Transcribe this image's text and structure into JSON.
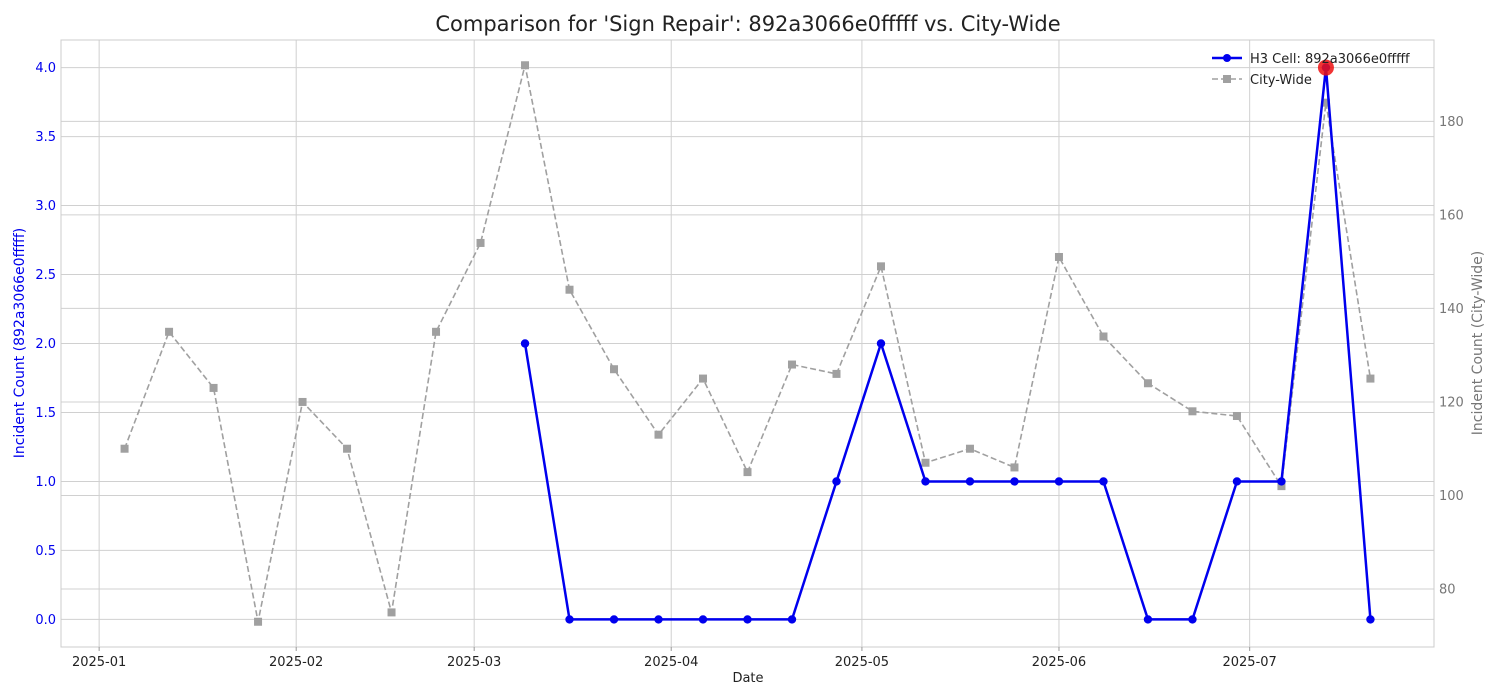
{
  "chart_data": {
    "type": "line",
    "title": "Comparison for 'Sign Repair': 892a3066e0fffff vs. City-Wide",
    "xlabel": "Date",
    "ylabel_left": "Incident Count (892a3066e0fffff)",
    "ylabel_right": "Incident Count (City-Wide)",
    "x_ticks": [
      "2025-01",
      "2025-02",
      "2025-03",
      "2025-04",
      "2025-05",
      "2025-06",
      "2025-07"
    ],
    "x_tick_dates": [
      "2025-01-01",
      "2025-02-01",
      "2025-03-01",
      "2025-04-01",
      "2025-05-01",
      "2025-06-01",
      "2025-07-01"
    ],
    "xlim": [
      "2024-12-26",
      "2025-07-30"
    ],
    "ylim_left": [
      -0.2,
      4.2
    ],
    "ylim_right": [
      67.6,
      197.4
    ],
    "yticks_left": [
      0.0,
      0.5,
      1.0,
      1.5,
      2.0,
      2.5,
      3.0,
      3.5,
      4.0
    ],
    "yticks_right": [
      80,
      100,
      120,
      140,
      160,
      180
    ],
    "grid": true,
    "legend_position": "top-right",
    "colors": {
      "h3": "#0000ee",
      "city": "#a0a0a0",
      "highlight": "#ee1111",
      "left_axis": "#0000ee",
      "right_axis": "#777777"
    },
    "series": [
      {
        "name": "H3 Cell: 892a3066e0fffff",
        "axis": "left",
        "style": "solid-circle",
        "x": [
          "2025-03-09",
          "2025-03-16",
          "2025-03-23",
          "2025-03-30",
          "2025-04-06",
          "2025-04-13",
          "2025-04-20",
          "2025-04-27",
          "2025-05-04",
          "2025-05-11",
          "2025-05-18",
          "2025-05-25",
          "2025-06-01",
          "2025-06-08",
          "2025-06-15",
          "2025-06-22",
          "2025-06-29",
          "2025-07-06",
          "2025-07-13",
          "2025-07-20"
        ],
        "values": [
          2,
          0,
          0,
          0,
          0,
          0,
          0,
          1,
          2,
          1,
          1,
          1,
          1,
          1,
          0,
          0,
          1,
          1,
          4,
          0
        ]
      },
      {
        "name": "City-Wide",
        "axis": "right",
        "style": "dashed-square",
        "x": [
          "2025-01-05",
          "2025-01-12",
          "2025-01-19",
          "2025-01-26",
          "2025-02-02",
          "2025-02-09",
          "2025-02-16",
          "2025-02-23",
          "2025-03-02",
          "2025-03-09",
          "2025-03-16",
          "2025-03-23",
          "2025-03-30",
          "2025-04-06",
          "2025-04-13",
          "2025-04-20",
          "2025-04-27",
          "2025-05-04",
          "2025-05-11",
          "2025-05-18",
          "2025-05-25",
          "2025-06-01",
          "2025-06-08",
          "2025-06-15",
          "2025-06-22",
          "2025-06-29",
          "2025-07-06",
          "2025-07-13",
          "2025-07-20"
        ],
        "values": [
          110,
          135,
          123,
          73,
          120,
          110,
          75,
          135,
          154,
          192,
          144,
          127,
          113,
          125,
          105,
          128,
          126,
          149,
          107,
          110,
          106,
          151,
          134,
          124,
          118,
          117,
          102,
          184,
          125
        ]
      }
    ],
    "highlight_point": {
      "x": "2025-07-13",
      "value": 4
    }
  }
}
